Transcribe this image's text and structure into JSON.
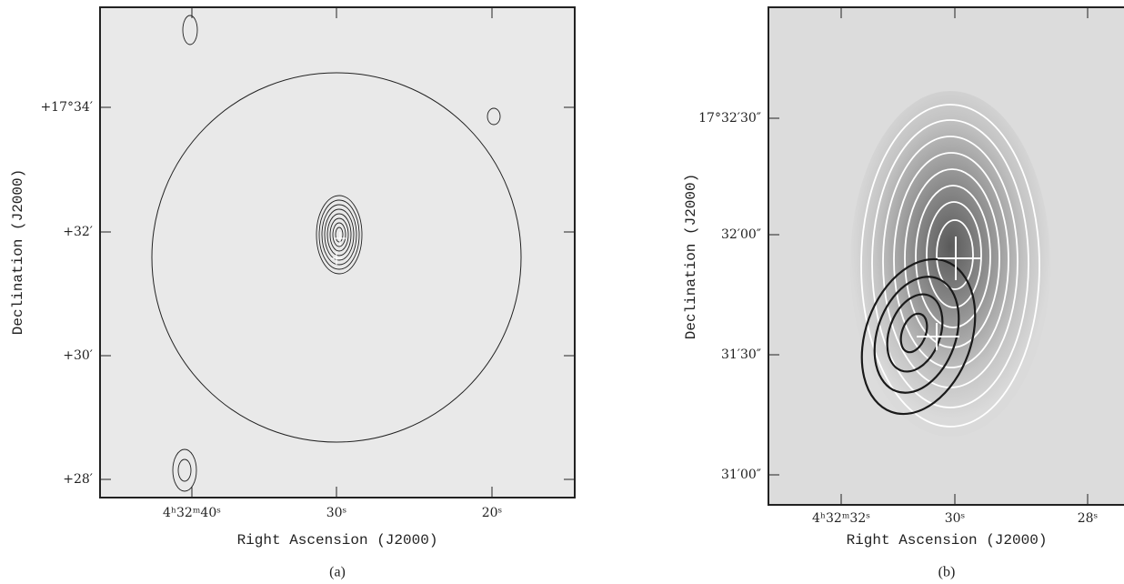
{
  "panel_a": {
    "y_axis_title": "Declination (J2000)",
    "x_axis_title": "Right Ascension (J2000)",
    "y_tick_labels": [
      "+17°34′",
      "+32′",
      "+30′",
      "+28′"
    ],
    "x_tick_labels": [
      "4ʰ32ᵐ40ˢ",
      "30ˢ",
      "20ˢ"
    ],
    "caption": "(a)"
  },
  "panel_b": {
    "y_axis_title": "Declination (J2000)",
    "x_axis_title": "Right Ascension (J2000)",
    "y_tick_labels": [
      "17°32′30″",
      "32′00″",
      "31′30″",
      "31′00″"
    ],
    "x_tick_labels": [
      "4ʰ32ᵐ32ˢ",
      "30ˢ",
      "28ˢ"
    ],
    "caption": "(b)"
  }
}
